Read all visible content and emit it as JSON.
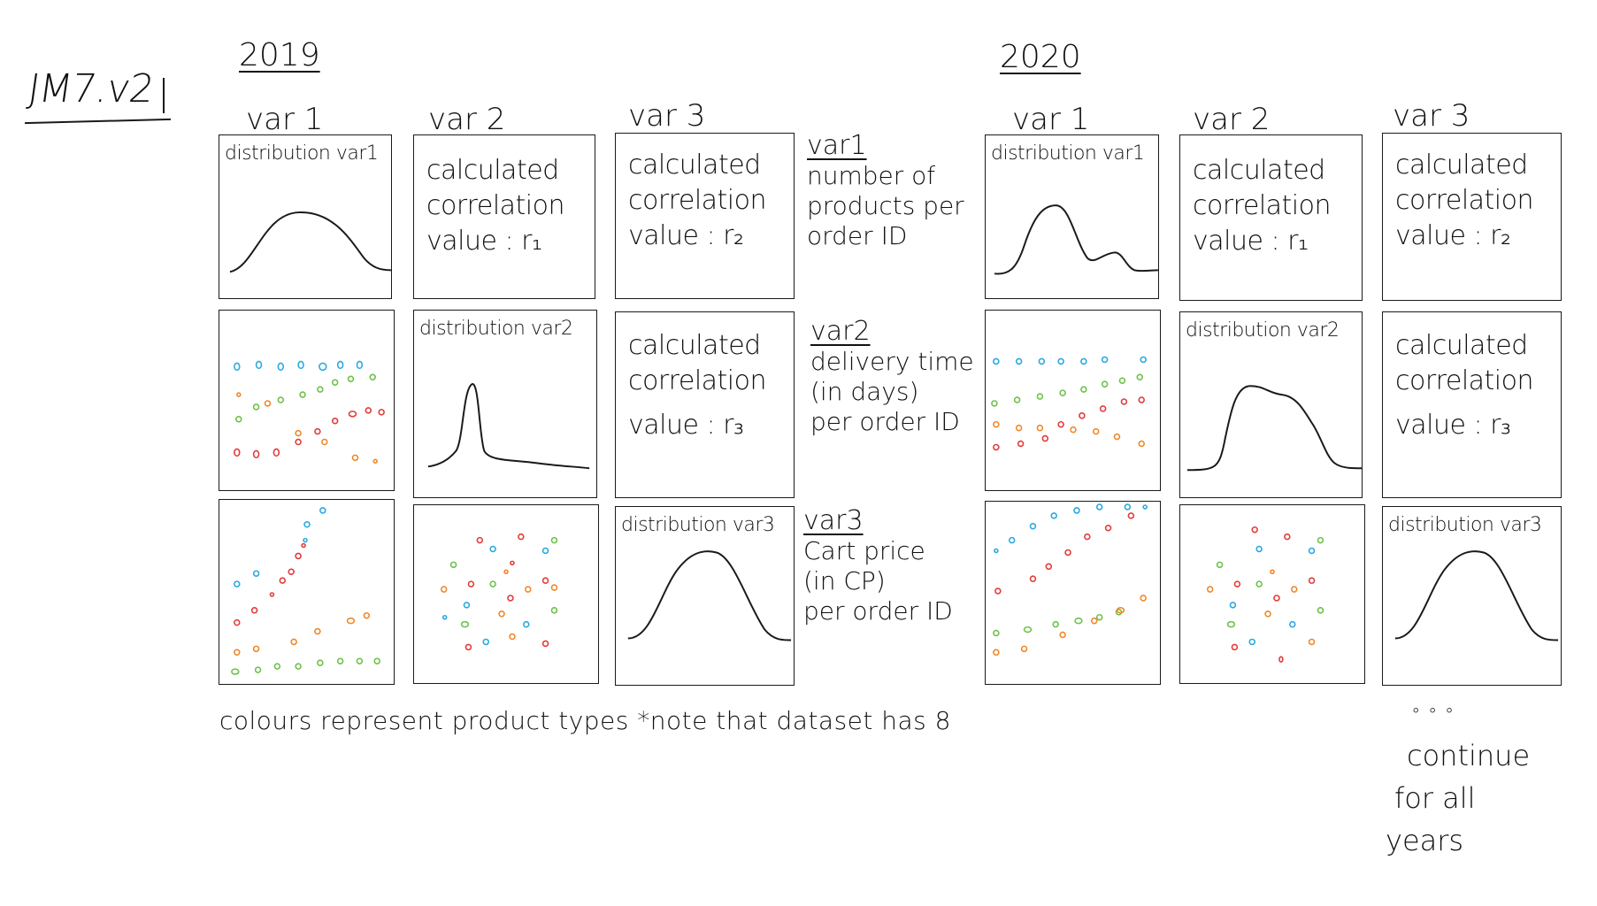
{
  "page_title": "JM7.v2",
  "years": [
    {
      "label": "2019",
      "columns": [
        "var 1",
        "var 2",
        "var 3"
      ],
      "distributions": [
        "distribution var1",
        "distribution var2",
        "distribution var3"
      ],
      "correlations": [
        {
          "lines": [
            "calculated",
            "correlation",
            "value : r₁"
          ]
        },
        {
          "lines": [
            "calculated",
            "correlation",
            "value : r₂"
          ]
        },
        {
          "lines": [
            "calculated",
            "correlation",
            "value : r₃"
          ]
        }
      ]
    },
    {
      "label": "2020",
      "columns": [
        "var 1",
        "var 2",
        "var 3"
      ],
      "distributions": [
        "distribution var1",
        "distribution var2",
        "distribution var3"
      ],
      "correlations": [
        {
          "lines": [
            "calculated",
            "correlation",
            "value : r₁"
          ]
        },
        {
          "lines": [
            "calculated",
            "correlation",
            "value : r₂"
          ]
        },
        {
          "lines": [
            "calculated",
            "correlation",
            "value : r₃"
          ]
        }
      ]
    }
  ],
  "variable_legend": [
    {
      "title": "var1",
      "lines": [
        "number of",
        "products per",
        "order ID"
      ]
    },
    {
      "title": "var2",
      "lines": [
        "delivery time",
        "(in days)",
        "per order ID"
      ]
    },
    {
      "title": "var3",
      "lines": [
        "Cart price",
        "(in CP)",
        "per order ID"
      ]
    }
  ],
  "footnote": "colours represent product types *note that dataset has 8",
  "continue_note": {
    "ellipsis": "∘ ∘ ∘",
    "lines": [
      "continue",
      "for all",
      "years"
    ]
  },
  "colors": {
    "ink": "#1a1a1a",
    "blue": "#29a9e0",
    "green": "#6cc24a",
    "red": "#e23b3b",
    "orange": "#f0882a"
  }
}
